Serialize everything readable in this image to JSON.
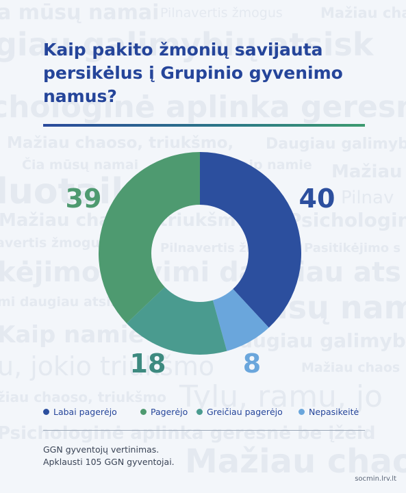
{
  "title": "Kaip pakito žmonių savijauta persikėlus į Grupinio gyvenimo namus?",
  "background_phrases": [
    "a mūsų namai",
    "Pilnavertis žmogus",
    "Mažiau chaoso",
    "giau galimybių atsisk",
    "chologinė aplinka geresnė be į",
    "Mažiau chaoso, triukšmo,",
    "Daugiau galimyb",
    "Čia mūsų namai",
    "kaip namie",
    "Mažiau",
    "luotaik namie",
    "Pilnav",
    "Mažiau chaoso, triukšmo",
    "Psichologinė",
    "avertis žmogus",
    "Pilnavertis žmogus",
    "Pasitikėjimo s",
    "kėjimo savimi daugiau ats",
    "mi daugiau atsis",
    "mūsų nam",
    "Kaip namie",
    "daugiau galimybių a",
    "u, jokio triukšmo",
    "Mažiau chaos",
    "žiau chaoso, triukšmo",
    "Tylu, ramu, jo",
    "Psichologinė aplinka geresnė be įžeid",
    "Mažiau chaoso, trikš"
  ],
  "chart_data": {
    "type": "pie",
    "donut": true,
    "categories": [
      "Labai pagerėjo",
      "Pagerėjo",
      "Greičiau pagerėjo",
      "Nepasikeitė"
    ],
    "values": [
      40,
      39,
      18,
      8
    ],
    "colors": [
      "#2c4f9e",
      "#4e9a70",
      "#4a9b8f",
      "#6aa6dc"
    ],
    "label_colors": [
      "#2c4f9e",
      "#4e9a70",
      "#3d8a80",
      "#6aa6dc"
    ],
    "title": "Kaip pakito žmonių savijauta persikėlus į Grupinio gyvenimo namus?",
    "legend_position": "bottom"
  },
  "legend": [
    {
      "label": "Labai pagerėjo",
      "color": "#2c4f9e"
    },
    {
      "label": "Pagerėjo",
      "color": "#4e9a70"
    },
    {
      "label": "Greičiau pagerėjo",
      "color": "#4a9b8f"
    },
    {
      "label": "Nepasikeitė",
      "color": "#6aa6dc"
    }
  ],
  "footnote": {
    "line1": "GGN gyventojų vertinimas.",
    "line2": "Apklausti 105 GGN gyventojai."
  },
  "source": "socmin.lrv.lt"
}
